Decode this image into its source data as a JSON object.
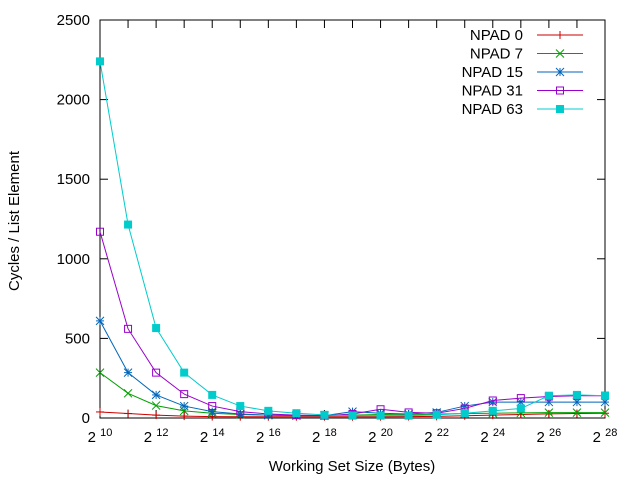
{
  "chart_data": {
    "type": "line",
    "title": "",
    "xlabel": "Working Set Size (Bytes)",
    "ylabel": "Cycles / List Element",
    "x_scale": "log2",
    "x": [
      10,
      11,
      12,
      13,
      14,
      15,
      16,
      17,
      18,
      19,
      20,
      21,
      22,
      23,
      24,
      25,
      26,
      27,
      28
    ],
    "xlim": [
      10,
      28
    ],
    "ylim": [
      0,
      2500
    ],
    "grid": false,
    "legend_position": "top-right",
    "x_ticks": [
      {
        "base": "2",
        "exp": "10"
      },
      {
        "base": "2",
        "exp": "12"
      },
      {
        "base": "2",
        "exp": "14"
      },
      {
        "base": "2",
        "exp": "16"
      },
      {
        "base": "2",
        "exp": "18"
      },
      {
        "base": "2",
        "exp": "20"
      },
      {
        "base": "2",
        "exp": "22"
      },
      {
        "base": "2",
        "exp": "24"
      },
      {
        "base": "2",
        "exp": "26"
      },
      {
        "base": "2",
        "exp": "28"
      }
    ],
    "y_ticks": [
      "0",
      "500",
      "1000",
      "1500",
      "2000",
      "2500"
    ],
    "series": [
      {
        "name": "NPAD 0",
        "color": "#cc0000",
        "marker": "plus",
        "values": [
          38,
          28,
          18,
          12,
          9,
          8,
          8,
          8,
          8,
          8,
          8,
          9,
          10,
          14,
          18,
          22,
          26,
          28,
          30
        ]
      },
      {
        "name": "NPAD 7",
        "color": "#00a000",
        "marker": "cross",
        "values": [
          285,
          155,
          78,
          45,
          30,
          22,
          18,
          16,
          16,
          18,
          22,
          20,
          24,
          28,
          30,
          32,
          34,
          34,
          34
        ]
      },
      {
        "name": "NPAD 15",
        "color": "#0066bb",
        "marker": "star",
        "values": [
          610,
          285,
          145,
          75,
          40,
          25,
          18,
          15,
          15,
          40,
          30,
          25,
          35,
          75,
          100,
          100,
          100,
          100,
          100
        ]
      },
      {
        "name": "NPAD 31",
        "color": "#9900cc",
        "marker": "box",
        "values": [
          1170,
          560,
          285,
          150,
          75,
          40,
          25,
          18,
          15,
          25,
          55,
          35,
          30,
          60,
          110,
          125,
          135,
          140,
          140
        ]
      },
      {
        "name": "NPAD 63",
        "color": "#00cccc",
        "marker": "filledbox",
        "values": [
          2240,
          1215,
          565,
          285,
          145,
          75,
          45,
          30,
          20,
          15,
          15,
          15,
          20,
          30,
          45,
          60,
          140,
          145,
          140
        ]
      }
    ]
  }
}
